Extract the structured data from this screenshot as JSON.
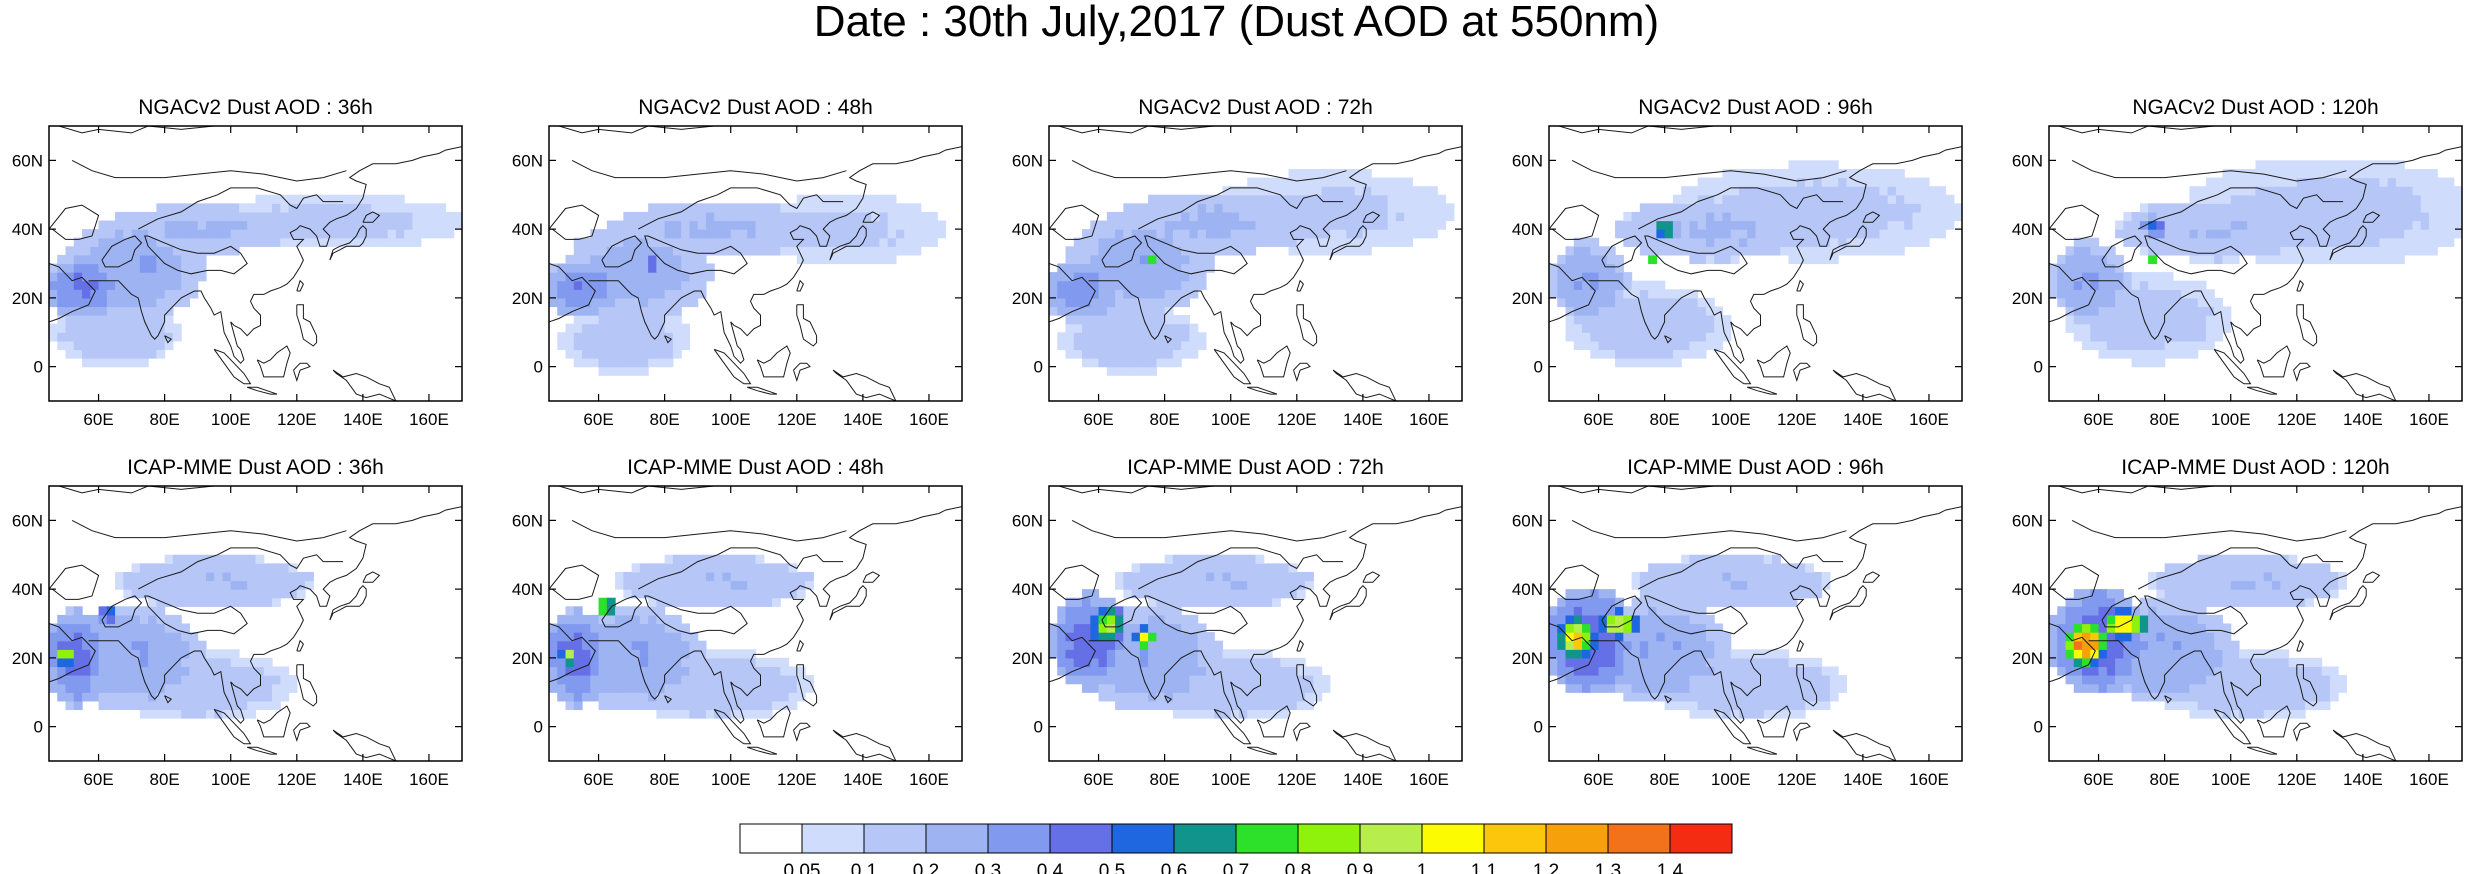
{
  "title": "Date : 30th July,2017 (Dust AOD at 550nm)",
  "chart_data": {
    "type": "heatmap",
    "title": "Date : 30th July,2017 (Dust AOD at 550nm)",
    "variable": "Dust AOD at 550nm",
    "date": "30th July,2017",
    "map_domain": {
      "lon_range": [
        45,
        170
      ],
      "lat_range": [
        -10,
        70
      ]
    },
    "x_ticks": [
      "60E",
      "80E",
      "100E",
      "120E",
      "140E",
      "160E"
    ],
    "x_tick_values": [
      60,
      80,
      100,
      120,
      140,
      160
    ],
    "y_ticks": [
      "60N",
      "40N",
      "20N",
      "0"
    ],
    "y_tick_values": [
      60,
      40,
      20,
      0
    ],
    "panels": [
      {
        "model": "NGACv2",
        "lead": "36h",
        "title": "NGACv2 Dust AOD : 36h",
        "blobs": [
          {
            "lon": 55,
            "lat": 23,
            "rlon": 12,
            "rlat": 9,
            "aod": 0.42
          },
          {
            "lon": 70,
            "lat": 28,
            "rlon": 22,
            "rlat": 15,
            "aod": 0.28
          },
          {
            "lon": 75,
            "lat": 30,
            "rlon": 3,
            "rlat": 2.5,
            "aod": 0.5
          },
          {
            "lon": 90,
            "lat": 40,
            "rlon": 30,
            "rlat": 7,
            "aod": 0.22
          },
          {
            "lon": 130,
            "lat": 42,
            "rlon": 40,
            "rlat": 8,
            "aod": 0.13
          },
          {
            "lon": 65,
            "lat": 10,
            "rlon": 20,
            "rlat": 10,
            "aod": 0.16
          }
        ]
      },
      {
        "model": "NGACv2",
        "lead": "48h",
        "title": "NGACv2 Dust AOD : 48h",
        "blobs": [
          {
            "lon": 55,
            "lat": 23,
            "rlon": 12,
            "rlat": 9,
            "aod": 0.38
          },
          {
            "lon": 72,
            "lat": 28,
            "rlon": 22,
            "rlat": 15,
            "aod": 0.26
          },
          {
            "lon": 76,
            "lat": 30,
            "rlon": 3,
            "rlat": 2.5,
            "aod": 0.5
          },
          {
            "lon": 95,
            "lat": 40,
            "rlon": 32,
            "rlat": 8,
            "aod": 0.22
          },
          {
            "lon": 135,
            "lat": 40,
            "rlon": 30,
            "rlat": 10,
            "aod": 0.12
          },
          {
            "lon": 68,
            "lat": 8,
            "rlon": 20,
            "rlat": 10,
            "aod": 0.15
          }
        ]
      },
      {
        "model": "NGACv2",
        "lead": "72h",
        "title": "NGACv2 Dust AOD : 72h",
        "blobs": [
          {
            "lon": 55,
            "lat": 22,
            "rlon": 12,
            "rlat": 9,
            "aod": 0.36
          },
          {
            "lon": 72,
            "lat": 30,
            "rlon": 22,
            "rlat": 15,
            "aod": 0.27
          },
          {
            "lon": 76,
            "lat": 31,
            "rlon": 2.5,
            "rlat": 2,
            "aod": 0.75
          },
          {
            "lon": 95,
            "lat": 42,
            "rlon": 32,
            "rlat": 9,
            "aod": 0.22
          },
          {
            "lon": 130,
            "lat": 45,
            "rlon": 38,
            "rlat": 12,
            "aod": 0.12
          },
          {
            "lon": 70,
            "lat": 8,
            "rlon": 22,
            "rlat": 10,
            "aod": 0.15
          }
        ]
      },
      {
        "model": "NGACv2",
        "lead": "96h",
        "title": "NGACv2 Dust AOD : 96h",
        "blobs": [
          {
            "lon": 57,
            "lat": 25,
            "rlon": 12,
            "rlat": 12,
            "aod": 0.3
          },
          {
            "lon": 80,
            "lat": 40,
            "rlon": 4,
            "rlat": 3,
            "aod": 0.72
          },
          {
            "lon": 76,
            "lat": 31,
            "rlon": 2,
            "rlat": 2,
            "aod": 0.75
          },
          {
            "lon": 95,
            "lat": 40,
            "rlon": 30,
            "rlat": 9,
            "aod": 0.22
          },
          {
            "lon": 125,
            "lat": 45,
            "rlon": 45,
            "rlat": 14,
            "aod": 0.13
          },
          {
            "lon": 75,
            "lat": 12,
            "rlon": 25,
            "rlat": 12,
            "aod": 0.15
          }
        ]
      },
      {
        "model": "NGACv2",
        "lead": "120h",
        "title": "NGACv2 Dust AOD : 120h",
        "blobs": [
          {
            "lon": 57,
            "lat": 25,
            "rlon": 12,
            "rlat": 12,
            "aod": 0.3
          },
          {
            "lon": 77,
            "lat": 41,
            "rlon": 4,
            "rlat": 3,
            "aod": 0.55
          },
          {
            "lon": 76,
            "lat": 31,
            "rlon": 2,
            "rlat": 2,
            "aod": 0.75
          },
          {
            "lon": 95,
            "lat": 40,
            "rlon": 30,
            "rlat": 9,
            "aod": 0.2
          },
          {
            "lon": 130,
            "lat": 45,
            "rlon": 45,
            "rlat": 16,
            "aod": 0.13
          },
          {
            "lon": 75,
            "lat": 14,
            "rlon": 25,
            "rlat": 13,
            "aod": 0.14
          }
        ]
      },
      {
        "model": "ICAP-MME",
        "lead": "36h",
        "title": "ICAP-MME Dust AOD : 36h",
        "blobs": [
          {
            "lon": 53,
            "lat": 20,
            "rlon": 10,
            "rlat": 14,
            "aod": 0.45
          },
          {
            "lon": 50,
            "lat": 21,
            "rlon": 2.5,
            "rlat": 3,
            "aod": 1.0
          },
          {
            "lon": 63,
            "lat": 33,
            "rlon": 3,
            "rlat": 3,
            "aod": 0.55
          },
          {
            "lon": 70,
            "lat": 20,
            "rlon": 22,
            "rlat": 15,
            "aod": 0.3
          },
          {
            "lon": 95,
            "lat": 42,
            "rlon": 30,
            "rlat": 8,
            "aod": 0.2
          },
          {
            "lon": 90,
            "lat": 12,
            "rlon": 30,
            "rlat": 10,
            "aod": 0.16
          }
        ]
      },
      {
        "model": "ICAP-MME",
        "lead": "48h",
        "title": "ICAP-MME Dust AOD : 48h",
        "blobs": [
          {
            "lon": 53,
            "lat": 20,
            "rlon": 10,
            "rlat": 14,
            "aod": 0.45
          },
          {
            "lon": 51,
            "lat": 21,
            "rlon": 2.5,
            "rlat": 3,
            "aod": 0.95
          },
          {
            "lon": 62,
            "lat": 35,
            "rlon": 3,
            "rlat": 3,
            "aod": 0.85
          },
          {
            "lon": 70,
            "lat": 20,
            "rlon": 22,
            "rlat": 15,
            "aod": 0.3
          },
          {
            "lon": 95,
            "lat": 42,
            "rlon": 30,
            "rlat": 8,
            "aod": 0.2
          },
          {
            "lon": 95,
            "lat": 12,
            "rlon": 30,
            "rlat": 10,
            "aod": 0.16
          }
        ]
      },
      {
        "model": "ICAP-MME",
        "lead": "72h",
        "title": "ICAP-MME Dust AOD : 72h",
        "blobs": [
          {
            "lon": 57,
            "lat": 25,
            "rlon": 12,
            "rlat": 14,
            "aod": 0.48
          },
          {
            "lon": 63,
            "lat": 30,
            "rlon": 5,
            "rlat": 5,
            "aod": 0.95
          },
          {
            "lon": 74,
            "lat": 26,
            "rlon": 3,
            "rlat": 3,
            "aod": 1.05
          },
          {
            "lon": 75,
            "lat": 20,
            "rlon": 22,
            "rlat": 15,
            "aod": 0.3
          },
          {
            "lon": 95,
            "lat": 42,
            "rlon": 30,
            "rlat": 8,
            "aod": 0.2
          },
          {
            "lon": 100,
            "lat": 12,
            "rlon": 30,
            "rlat": 10,
            "aod": 0.16
          }
        ]
      },
      {
        "model": "ICAP-MME",
        "lead": "96h",
        "title": "ICAP-MME Dust AOD : 96h",
        "blobs": [
          {
            "lon": 57,
            "lat": 25,
            "rlon": 14,
            "rlat": 16,
            "aod": 0.5
          },
          {
            "lon": 53,
            "lat": 26,
            "rlon": 5,
            "rlat": 6,
            "aod": 1.15
          },
          {
            "lon": 66,
            "lat": 30,
            "rlon": 6,
            "rlat": 4,
            "aod": 1.05
          },
          {
            "lon": 78,
            "lat": 22,
            "rlon": 22,
            "rlat": 15,
            "aod": 0.3
          },
          {
            "lon": 100,
            "lat": 42,
            "rlon": 30,
            "rlat": 8,
            "aod": 0.2
          },
          {
            "lon": 105,
            "lat": 12,
            "rlon": 30,
            "rlat": 10,
            "aod": 0.16
          }
        ]
      },
      {
        "model": "ICAP-MME",
        "lead": "120h",
        "title": "ICAP-MME Dust AOD : 120h",
        "blobs": [
          {
            "lon": 60,
            "lat": 25,
            "rlon": 15,
            "rlat": 16,
            "aod": 0.5
          },
          {
            "lon": 56,
            "lat": 24,
            "rlon": 6,
            "rlat": 6,
            "aod": 1.35
          },
          {
            "lon": 68,
            "lat": 30,
            "rlon": 7,
            "rlat": 4,
            "aod": 1.1
          },
          {
            "lon": 80,
            "lat": 22,
            "rlon": 22,
            "rlat": 15,
            "aod": 0.3
          },
          {
            "lon": 105,
            "lat": 42,
            "rlon": 30,
            "rlat": 8,
            "aod": 0.2
          },
          {
            "lon": 105,
            "lat": 12,
            "rlon": 30,
            "rlat": 10,
            "aod": 0.16
          }
        ]
      }
    ],
    "colorbar": {
      "labels": [
        "0.05",
        "0.1",
        "0.2",
        "0.3",
        "0.4",
        "0.5",
        "0.6",
        "0.7",
        "0.8",
        "0.9",
        "1",
        "1.1",
        "1.2",
        "1.3",
        "1.4"
      ],
      "levels": [
        0.05,
        0.1,
        0.2,
        0.3,
        0.4,
        0.5,
        0.6,
        0.7,
        0.8,
        0.9,
        1.0,
        1.1,
        1.2,
        1.3,
        1.4
      ],
      "colors": [
        "#ffffff",
        "#d0dcfb",
        "#b6c6f7",
        "#9db3f2",
        "#8199ee",
        "#6670e6",
        "#1f67e0",
        "#11948c",
        "#2de12a",
        "#8ff20d",
        "#b7ee4e",
        "#fdfb02",
        "#fcc60c",
        "#f6a00c",
        "#f2711b",
        "#f42d12"
      ]
    }
  },
  "coastline_color": "#1a1a1a",
  "grid": "off"
}
